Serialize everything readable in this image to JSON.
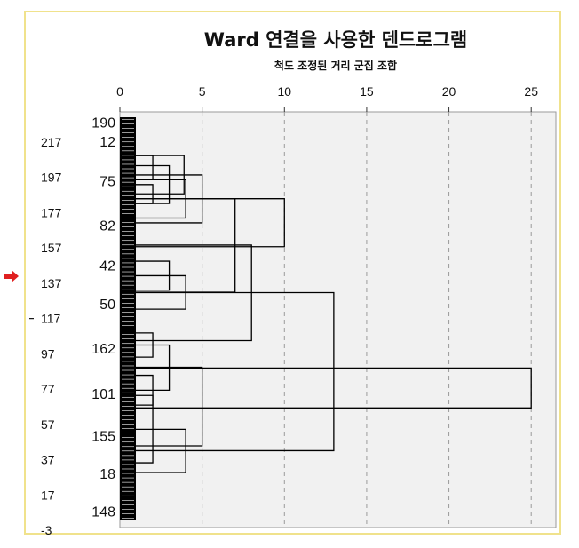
{
  "chart_data": {
    "type": "dendrogram",
    "title": "Ward 연결을 사용한 덴드로그램",
    "subtitle": "척도 조정된 거리 군집 조합",
    "x_ticks": [
      0,
      5,
      10,
      15,
      20,
      25
    ],
    "xlim": [
      0,
      26.5
    ],
    "grid": true,
    "leaf_labels": [
      "190",
      "12",
      "75",
      "82",
      "42",
      "50",
      "162",
      "101",
      "155",
      "18",
      "148"
    ],
    "outer_axis_labels": [
      "217",
      "197",
      "177",
      "157",
      "137",
      "117",
      "97",
      "77",
      "57",
      "37",
      "17",
      "-3"
    ],
    "merges": [
      {
        "left_from": 0.167,
        "right_from": 0.214,
        "height": 2.0
      },
      {
        "left_from": 0.095,
        "right_from": 0.19,
        "height": 3.9
      },
      {
        "left_from": 0.143,
        "right_from": 0.262,
        "height": 5.0
      },
      {
        "left_from": 0.357,
        "right_from": 0.429,
        "height": 3.0
      },
      {
        "left_from": 0.393,
        "right_from": 0.476,
        "height": 4.0
      },
      {
        "left_from": 0.202,
        "right_from": 0.434,
        "height": 7.0
      },
      {
        "left_from": 0.317,
        "right_from": 0.554,
        "height": 8.0
      },
      {
        "left_from": 0.69,
        "right_from": 0.857,
        "height": 2.0
      },
      {
        "left_from": 0.774,
        "right_from": 0.881,
        "height": 4.0
      },
      {
        "left_from": 0.435,
        "right_from": 0.827,
        "height": 13.0
      },
      {
        "left_from": 0.095,
        "right_from": 0.155,
        "height": 2.0
      },
      {
        "left_from": 0.12,
        "right_from": 0.214,
        "height": 3.0
      },
      {
        "left_from": 0.155,
        "right_from": 0.25,
        "height": 4.0
      },
      {
        "left_from": 0.202,
        "right_from": 0.321,
        "height": 10.0
      },
      {
        "left_from": 0.535,
        "right_from": 0.595,
        "height": 2.0
      },
      {
        "left_from": 0.64,
        "right_from": 0.714,
        "height": 2.0
      },
      {
        "left_from": 0.565,
        "right_from": 0.677,
        "height": 3.0
      },
      {
        "left_from": 0.62,
        "right_from": 0.815,
        "height": 5.0
      },
      {
        "left_from": 0.622,
        "right_from": 0.721,
        "height": 25.0
      }
    ]
  }
}
